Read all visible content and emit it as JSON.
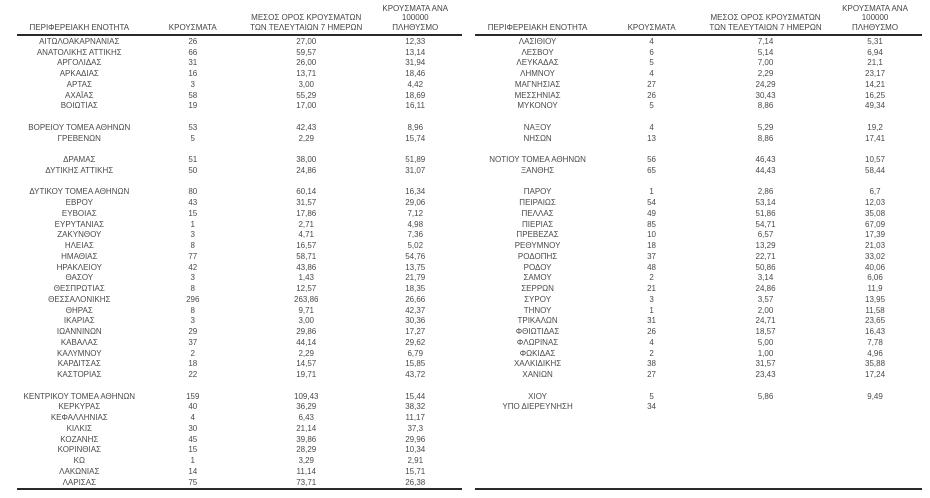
{
  "chart_data": {
    "type": "table",
    "title": "",
    "columns": [
      "ΠΕΡΙΦΕΡΕΙΑΚΗ ΕΝΟΤΗΤΑ",
      "ΚΡΟΥΣΜΑΤΑ",
      "ΜΕΣΟΣ ΟΡΟΣ ΚΡΟΥΣΜΑΤΩΝ\nΤΩΝ ΤΕΛΕΥΤΑΙΩΝ 7 ΗΜΕΡΩΝ",
      "ΚΡΟΥΣΜΑΤΑ ΑΝΑ 100000\nΠΛΗΘΥΣΜΟ"
    ],
    "left_rows": [
      [
        "ΑΙΤΩΛΟΑΚΑΡΝΑΝΙΑΣ",
        "26",
        "27,00",
        "12,33"
      ],
      [
        "ΑΝΑΤΟΛΙΚΗΣ ΑΤΤΙΚΗΣ",
        "66",
        "59,57",
        "13,14"
      ],
      [
        "ΑΡΓΟΛΙΔΑΣ",
        "31",
        "26,00",
        "31,94"
      ],
      [
        "ΑΡΚΑΔΙΑΣ",
        "16",
        "13,71",
        "18,46"
      ],
      [
        "ΑΡΤΑΣ",
        "3",
        "3,00",
        "4,42"
      ],
      [
        "ΑΧΑΪΑΣ",
        "58",
        "55,29",
        "18,69"
      ],
      [
        "ΒΟΙΩΤΙΑΣ",
        "19",
        "17,00",
        "16,11"
      ],
      null,
      [
        "ΒΟΡΕΙΟΥ ΤΟΜΕΑ ΑΘΗΝΩΝ",
        "53",
        "42,43",
        "8,96"
      ],
      [
        "ΓΡΕΒΕΝΩΝ",
        "5",
        "2,29",
        "15,74"
      ],
      null,
      [
        "ΔΡΑΜΑΣ",
        "51",
        "38,00",
        "51,89"
      ],
      [
        "ΔΥΤΙΚΗΣ ΑΤΤΙΚΗΣ",
        "50",
        "24,86",
        "31,07"
      ],
      null,
      [
        "ΔΥΤΙΚΟΥ ΤΟΜΕΑ ΑΘΗΝΩΝ",
        "80",
        "60,14",
        "16,34"
      ],
      [
        "ΕΒΡΟΥ",
        "43",
        "31,57",
        "29,06"
      ],
      [
        "ΕΥΒΟΙΑΣ",
        "15",
        "17,86",
        "7,12"
      ],
      [
        "ΕΥΡΥΤΑΝΙΑΣ",
        "1",
        "2,71",
        "4,98"
      ],
      [
        "ΖΑΚΥΝΘΟΥ",
        "3",
        "4,71",
        "7,36"
      ],
      [
        "ΗΛΕΙΑΣ",
        "8",
        "16,57",
        "5,02"
      ],
      [
        "ΗΜΑΘΙΑΣ",
        "77",
        "58,71",
        "54,76"
      ],
      [
        "ΗΡΑΚΛΕΙΟΥ",
        "42",
        "43,86",
        "13,75"
      ],
      [
        "ΘΑΣΟΥ",
        "3",
        "1,43",
        "21,79"
      ],
      [
        "ΘΕΣΠΡΩΤΙΑΣ",
        "8",
        "12,57",
        "18,35"
      ],
      [
        "ΘΕΣΣΑΛΟΝΙΚΗΣ",
        "296",
        "263,86",
        "26,66"
      ],
      [
        "ΘΗΡΑΣ",
        "8",
        "9,71",
        "42,37"
      ],
      [
        "ΙΚΑΡΙΑΣ",
        "3",
        "3,00",
        "30,36"
      ],
      [
        "ΙΩΑΝΝΙΝΩΝ",
        "29",
        "29,86",
        "17,27"
      ],
      [
        "ΚΑΒΑΛΑΣ",
        "37",
        "44,14",
        "29,62"
      ],
      [
        "ΚΑΛΥΜΝΟΥ",
        "2",
        "2,29",
        "6,79"
      ],
      [
        "ΚΑΡΔΙΤΣΑΣ",
        "18",
        "14,57",
        "15,85"
      ],
      [
        "ΚΑΣΤΟΡΙΑΣ",
        "22",
        "19,71",
        "43,72"
      ],
      null,
      [
        "ΚΕΝΤΡΙΚΟΥ ΤΟΜΕΑ ΑΘΗΝΩΝ",
        "159",
        "109,43",
        "15,44"
      ],
      [
        "ΚΕΡΚΥΡΑΣ",
        "40",
        "36,29",
        "38,32"
      ],
      [
        "ΚΕΦΑΛΛΗΝΙΑΣ",
        "4",
        "6,43",
        "11,17"
      ],
      [
        "ΚΙΛΚΙΣ",
        "30",
        "21,14",
        "37,3"
      ],
      [
        "ΚΟΖΑΝΗΣ",
        "45",
        "39,86",
        "29,96"
      ],
      [
        "ΚΟΡΙΝΘΙΑΣ",
        "15",
        "28,29",
        "10,34"
      ],
      [
        "ΚΩ",
        "1",
        "3,29",
        "2,91"
      ],
      [
        "ΛΑΚΩΝΙΑΣ",
        "14",
        "11,14",
        "15,71"
      ],
      [
        "ΛΑΡΙΣΑΣ",
        "75",
        "73,71",
        "26,38"
      ]
    ],
    "right_rows": [
      [
        "ΛΑΣΙΘΙΟΥ",
        "4",
        "7,14",
        "5,31"
      ],
      [
        "ΛΕΣΒΟΥ",
        "6",
        "5,14",
        "6,94"
      ],
      [
        "ΛΕΥΚΑΔΑΣ",
        "5",
        "7,00",
        "21,1"
      ],
      [
        "ΛΗΜΝΟΥ",
        "4",
        "2,29",
        "23,17"
      ],
      [
        "ΜΑΓΝΗΣΙΑΣ",
        "27",
        "24,29",
        "14,21"
      ],
      [
        "ΜΕΣΣΗΝΙΑΣ",
        "26",
        "30,43",
        "16,25"
      ],
      [
        "ΜΥΚΟΝΟΥ",
        "5",
        "8,86",
        "49,34"
      ],
      null,
      [
        "ΝΑΞΟΥ",
        "4",
        "5,29",
        "19,2"
      ],
      [
        "ΝΗΣΩΝ",
        "13",
        "8,86",
        "17,41"
      ],
      null,
      [
        "ΝΟΤΙΟΥ ΤΟΜΕΑ ΑΘΗΝΩΝ",
        "56",
        "46,43",
        "10,57"
      ],
      [
        "ΞΑΝΘΗΣ",
        "65",
        "44,43",
        "58,44"
      ],
      null,
      [
        "ΠΑΡΟΥ",
        "1",
        "2,86",
        "6,7"
      ],
      [
        "ΠΕΙΡΑΙΩΣ",
        "54",
        "53,14",
        "12,03"
      ],
      [
        "ΠΕΛΛΑΣ",
        "49",
        "51,86",
        "35,08"
      ],
      [
        "ΠΙΕΡΙΑΣ",
        "85",
        "54,71",
        "67,09"
      ],
      [
        "ΠΡΕΒΕΖΑΣ",
        "10",
        "6,57",
        "17,39"
      ],
      [
        "ΡΕΘΥΜΝΟΥ",
        "18",
        "13,29",
        "21,03"
      ],
      [
        "ΡΟΔΟΠΗΣ",
        "37",
        "22,71",
        "33,02"
      ],
      [
        "ΡΟΔΟΥ",
        "48",
        "50,86",
        "40,06"
      ],
      [
        "ΣΑΜΟΥ",
        "2",
        "3,14",
        "6,06"
      ],
      [
        "ΣΕΡΡΩΝ",
        "21",
        "24,86",
        "11,9"
      ],
      [
        "ΣΥΡΟΥ",
        "3",
        "3,57",
        "13,95"
      ],
      [
        "ΤΗΝΟΥ",
        "1",
        "2,00",
        "11,58"
      ],
      [
        "ΤΡΙΚΑΛΩΝ",
        "31",
        "24,71",
        "23,65"
      ],
      [
        "ΦΘΙΩΤΙΔΑΣ",
        "26",
        "18,57",
        "16,43"
      ],
      [
        "ΦΛΩΡΙΝΑΣ",
        "4",
        "5,00",
        "7,78"
      ],
      [
        "ΦΩΚΙΔΑΣ",
        "2",
        "1,00",
        "4,96"
      ],
      [
        "ΧΑΛΚΙΔΙΚΗΣ",
        "38",
        "31,57",
        "35,88"
      ],
      [
        "ΧΑΝΙΩΝ",
        "27",
        "23,43",
        "17,24"
      ],
      null,
      [
        "ΧΙΟΥ",
        "5",
        "5,86",
        "9,49"
      ],
      [
        "ΥΠΟ ΔΙΕΡΕΥΝΗΣΗ",
        "34",
        "",
        ""
      ],
      null,
      null,
      null,
      null,
      null,
      null,
      null
    ],
    "colors": {
      "text": "#4a4a4a",
      "rule": "#2a2a2a",
      "background": "#ffffff"
    },
    "layout": {
      "grid": "off",
      "decimal_separator": ","
    }
  }
}
